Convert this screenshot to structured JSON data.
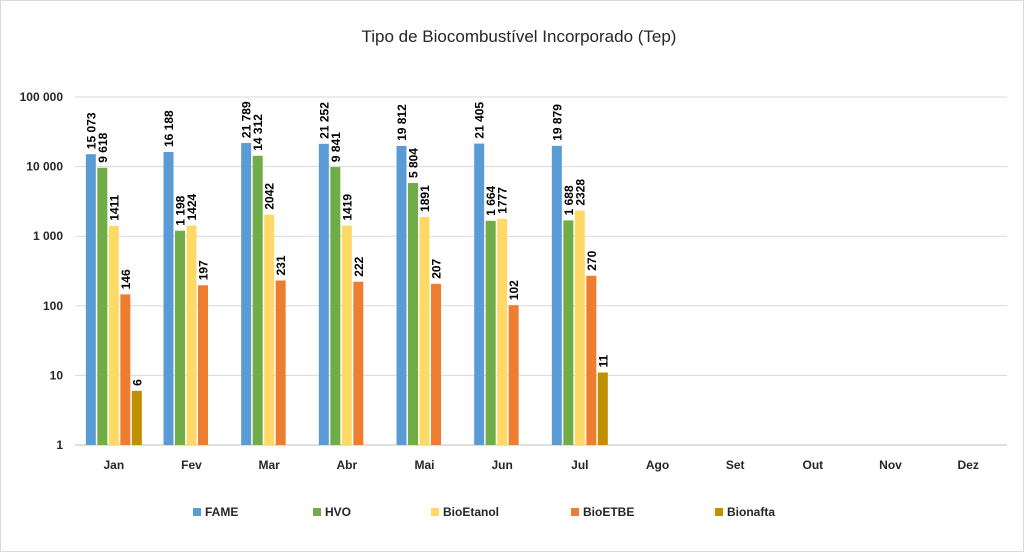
{
  "chart_data": {
    "type": "bar",
    "title": "Tipo de Biocombustível Incorporado (Tep)",
    "y_scale": "log",
    "ylim": [
      1,
      100000
    ],
    "y_ticks": [
      1,
      10,
      100,
      1000,
      10000,
      100000
    ],
    "y_tick_labels": [
      "1",
      "10",
      "100",
      "1 000",
      "10 000",
      "100 000"
    ],
    "grid": true,
    "legend_position": "bottom",
    "categories": [
      "Jan",
      "Fev",
      "Mar",
      "Abr",
      "Mai",
      "Jun",
      "Jul",
      "Ago",
      "Set",
      "Out",
      "Nov",
      "Dez"
    ],
    "series": [
      {
        "name": "FAME",
        "color": "#5b9bd5",
        "values": [
          15073,
          16188,
          21789,
          21252,
          19812,
          21405,
          19879,
          null,
          null,
          null,
          null,
          null
        ],
        "labels": [
          "15 073",
          "16 188",
          "21 789",
          "21 252",
          "19 812",
          "21 405",
          "19 879",
          null,
          null,
          null,
          null,
          null
        ]
      },
      {
        "name": "HVO",
        "color": "#70ad47",
        "values": [
          9618,
          1198,
          14312,
          9841,
          5804,
          1664,
          1688,
          null,
          null,
          null,
          null,
          null
        ],
        "labels": [
          "9 618",
          "1 198",
          "14 312",
          "9 841",
          "5 804",
          "1 664",
          "1 688",
          null,
          null,
          null,
          null,
          null
        ]
      },
      {
        "name": "BioEtanol",
        "color": "#ffd966",
        "values": [
          1411,
          1424,
          2042,
          1419,
          1891,
          1777,
          2328,
          null,
          null,
          null,
          null,
          null
        ],
        "labels": [
          "1411",
          "1424",
          "2042",
          "1419",
          "1891",
          "1777",
          "2328",
          null,
          null,
          null,
          null,
          null
        ]
      },
      {
        "name": "BioETBE",
        "color": "#ed7d31",
        "values": [
          146,
          197,
          231,
          222,
          207,
          102,
          270,
          null,
          null,
          null,
          null,
          null
        ],
        "labels": [
          "146",
          "197",
          "231",
          "222",
          "207",
          "102",
          "270",
          null,
          null,
          null,
          null,
          null
        ]
      },
      {
        "name": "Bionafta",
        "color": "#bf9000",
        "values": [
          6,
          null,
          null,
          null,
          null,
          null,
          11,
          null,
          null,
          null,
          null,
          null
        ],
        "labels": [
          "6",
          null,
          null,
          null,
          null,
          null,
          "11",
          null,
          null,
          null,
          null,
          null
        ]
      }
    ]
  }
}
